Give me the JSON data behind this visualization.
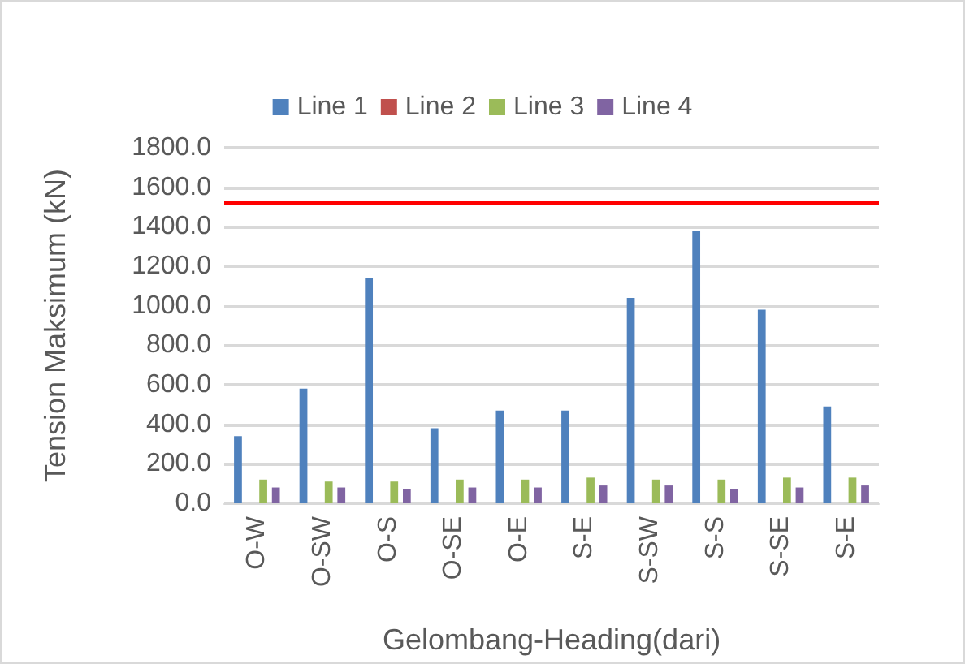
{
  "chart_data": {
    "type": "bar",
    "xlabel": "Gelombang-Heading(dari)",
    "ylabel": "Tension Maksimum (kN)",
    "categories": [
      "O-W",
      "O-SW",
      "O-S",
      "O-SE",
      "O-E",
      "S-E",
      "S-SW",
      "S-S",
      "S-SE",
      "S-E"
    ],
    "series": [
      {
        "name": "Line 1",
        "color": "#4f81bd",
        "values": [
          340,
          580,
          1140,
          380,
          470,
          470,
          1040,
          1380,
          980,
          490
        ]
      },
      {
        "name": "Line 2",
        "color": "#c0504d",
        "values": [
          null,
          null,
          null,
          null,
          null,
          null,
          null,
          null,
          null,
          null
        ]
      },
      {
        "name": "Line 3",
        "color": "#9bbb59",
        "values": [
          120,
          110,
          110,
          120,
          120,
          130,
          120,
          120,
          130,
          130
        ]
      },
      {
        "name": "Line 4",
        "color": "#8064a2",
        "values": [
          80,
          80,
          70,
          80,
          80,
          90,
          90,
          70,
          80,
          90
        ]
      }
    ],
    "ylim": [
      0,
      1800
    ],
    "yticks": [
      {
        "value": 0,
        "label": "0.0"
      },
      {
        "value": 200,
        "label": "200.0"
      },
      {
        "value": 400,
        "label": "400.0"
      },
      {
        "value": 600,
        "label": "600.0"
      },
      {
        "value": 800,
        "label": "800.0"
      },
      {
        "value": 1000,
        "label": "1000.0"
      },
      {
        "value": 1200,
        "label": "1200.0"
      },
      {
        "value": 1400,
        "label": "1400.0"
      },
      {
        "value": 1600,
        "label": "1600.0"
      },
      {
        "value": 1800,
        "label": "1800.0"
      }
    ],
    "ref_lines": [
      {
        "axis": "y",
        "value": 1520,
        "color": "#ff0000"
      }
    ],
    "grid": "y",
    "legend": "top"
  }
}
